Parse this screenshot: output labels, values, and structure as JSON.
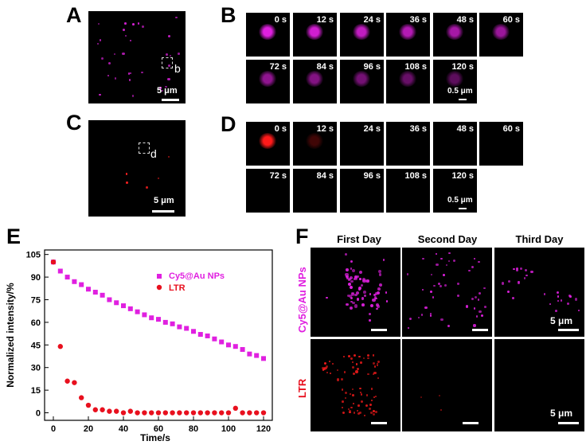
{
  "panel_letters": {
    "a": "A",
    "b": "B",
    "c": "C",
    "d": "D",
    "e": "E",
    "f": "F"
  },
  "panel_a": {
    "roi_label": "b",
    "scalebar": "5 μm"
  },
  "panel_c": {
    "roi_label": "d",
    "scalebar": "5 μm"
  },
  "panel_b": {
    "times": [
      "0 s",
      "12 s",
      "24 s",
      "36 s",
      "48 s",
      "60 s",
      "72 s",
      "84 s",
      "96 s",
      "108 s",
      "120 s"
    ],
    "scalebar": "0.5 μm",
    "spot_color": "#e020e0",
    "intensity": [
      1.0,
      0.93,
      0.86,
      0.8,
      0.74,
      0.69,
      0.64,
      0.58,
      0.52,
      0.46,
      0.41
    ]
  },
  "panel_d": {
    "times": [
      "0 s",
      "12 s",
      "24 s",
      "36 s",
      "48 s",
      "60 s",
      "72 s",
      "84 s",
      "96 s",
      "108 s",
      "120 s"
    ],
    "scalebar": "0.5 μm",
    "spot_color": "#ff1a1a",
    "intensity": [
      1.0,
      0.25,
      0,
      0,
      0,
      0,
      0,
      0,
      0,
      0,
      0
    ]
  },
  "panel_f": {
    "columns": [
      "First Day",
      "Second Day",
      "Third Day"
    ],
    "rows": [
      "Cy5@Au NPs",
      "LTR"
    ],
    "row_colors": [
      "#e020e0",
      "#e8101e"
    ],
    "scalebar": "5 μm"
  },
  "chart_data": {
    "type": "scatter",
    "xlabel": "Time/s",
    "ylabel": "Normalized intensity/%",
    "xlim": [
      -5,
      125
    ],
    "ylim": [
      -5,
      108
    ],
    "xticks": [
      0,
      20,
      40,
      60,
      80,
      100,
      120
    ],
    "yticks": [
      0,
      15,
      30,
      45,
      60,
      75,
      90,
      105
    ],
    "legend_position": "upper-right",
    "series": [
      {
        "name": "Cy5@Au NPs",
        "color": "#e020e0",
        "marker": "square",
        "x": [
          0,
          4,
          8,
          12,
          16,
          20,
          24,
          28,
          32,
          36,
          40,
          44,
          48,
          52,
          56,
          60,
          64,
          68,
          72,
          76,
          80,
          84,
          88,
          92,
          96,
          100,
          104,
          108,
          112,
          116,
          120
        ],
        "y": [
          100,
          94,
          90,
          87,
          85,
          82,
          80,
          78,
          75,
          73,
          71,
          69,
          67,
          65,
          63,
          62,
          60,
          59,
          57,
          56,
          54,
          52,
          51,
          49,
          47,
          45,
          44,
          42,
          39,
          38,
          36
        ]
      },
      {
        "name": "LTR",
        "color": "#e8101e",
        "marker": "circle",
        "x": [
          0,
          4,
          8,
          12,
          16,
          20,
          24,
          28,
          32,
          36,
          40,
          44,
          48,
          52,
          56,
          60,
          64,
          68,
          72,
          76,
          80,
          84,
          88,
          92,
          96,
          100,
          104,
          108,
          112,
          116,
          120
        ],
        "y": [
          100,
          44,
          21,
          20,
          10,
          5,
          2,
          2,
          1,
          1,
          0,
          1,
          0,
          0,
          0,
          0,
          0,
          0,
          0,
          0,
          0,
          0,
          0,
          0,
          0,
          0,
          3,
          0,
          0,
          0,
          0
        ]
      }
    ]
  }
}
